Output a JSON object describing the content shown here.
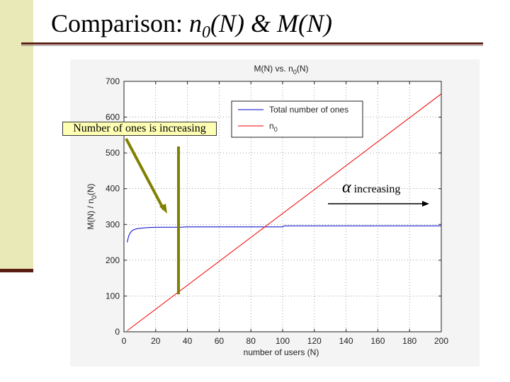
{
  "slide": {
    "title_prefix": "Comparison: ",
    "title_n": "n",
    "title_sub": "0",
    "title_suffix": "(N) & M(N)",
    "accent_color": "#e9e9b7",
    "rule_color": "#5a1e14"
  },
  "annotations": {
    "callout_text": "Number of ones is increasing",
    "alpha_symbol": "α",
    "alpha_text": " increasing",
    "callout_color": "#ffffb4",
    "arrow_color": "#808000"
  },
  "chart_data": {
    "type": "line",
    "title": "M(N) vs. n0(N)",
    "title_main": "M(N) vs. n",
    "title_sub": "0",
    "title_end": "(N)",
    "xlabel": "number of users (N)",
    "ylabel_main": "M(N) / n",
    "ylabel_sub": "0",
    "ylabel_end": "(N)",
    "xlim": [
      0,
      200
    ],
    "ylim": [
      0,
      700
    ],
    "xticks": [
      0,
      20,
      40,
      60,
      80,
      100,
      120,
      140,
      160,
      180,
      200
    ],
    "yticks": [
      0,
      100,
      200,
      300,
      400,
      500,
      600,
      700
    ],
    "grid": true,
    "legend_position": "top-right",
    "series": [
      {
        "name": "Total number of ones",
        "color": "#0000cc",
        "x": [
          2,
          3,
          4,
          5,
          6,
          8,
          10,
          12,
          15,
          20,
          25,
          30,
          35,
          40,
          60,
          80,
          100,
          101,
          120,
          140,
          160,
          180,
          200
        ],
        "y": [
          250,
          268,
          277,
          282,
          285,
          288,
          289,
          290,
          291,
          292,
          292,
          292,
          292,
          293,
          293,
          293,
          293,
          296,
          296,
          296,
          296,
          296,
          296
        ]
      },
      {
        "name": "n0",
        "legend_main": "n",
        "legend_sub": "0",
        "color": "#ee0000",
        "x": [
          2,
          200
        ],
        "y": [
          3,
          665
        ]
      }
    ]
  }
}
